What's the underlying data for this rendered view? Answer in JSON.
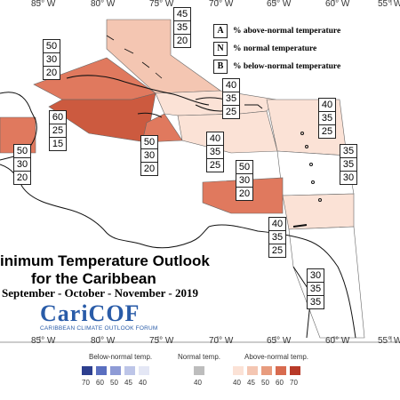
{
  "map": {
    "longitudes_top": [
      "85° W",
      "80° W",
      "75° W",
      "70° W",
      "65° W",
      "60° W",
      "55° W"
    ],
    "longitudes_bottom": [
      "85° W",
      "80° W",
      "75° W",
      "70° W",
      "65° W",
      "60° W",
      "55° W"
    ],
    "regions": [
      {
        "id": "bahamas",
        "probs": [
          "45",
          "35",
          "20"
        ],
        "category": "above-40",
        "color": "#f4c6b2"
      },
      {
        "id": "cuba-west",
        "probs": [
          "50",
          "30",
          "20"
        ],
        "category": "above-50",
        "color": "#e0795e"
      },
      {
        "id": "cayman",
        "probs": [
          "60",
          "25",
          "15"
        ],
        "category": "above-60",
        "color": "#cc5a3f"
      },
      {
        "id": "belize",
        "probs": [
          "50",
          "30",
          "20"
        ],
        "category": "above-50",
        "color": "#e0795e"
      },
      {
        "id": "jamaica-south",
        "probs": [
          "50",
          "30",
          "20"
        ],
        "category": "above-50",
        "color": "#e0795e"
      },
      {
        "id": "hispaniola-north",
        "probs": [
          "40",
          "35",
          "25"
        ],
        "category": "above-40",
        "color": "#fbe2d6"
      },
      {
        "id": "hispaniola-south",
        "probs": [
          "40",
          "35",
          "25"
        ],
        "category": "above-40",
        "color": "#fbe2d6"
      },
      {
        "id": "leeward",
        "probs": [
          "40",
          "35",
          "25"
        ],
        "category": "above-40",
        "color": "#fbe2d6"
      },
      {
        "id": "windward",
        "probs": [
          "35",
          "35",
          "30"
        ],
        "category": "normal",
        "color": "#ffffff"
      },
      {
        "id": "puerto-rico",
        "probs": [
          "50",
          "30",
          "20"
        ],
        "category": "above-50",
        "color": "#e0795e"
      },
      {
        "id": "abc-islands",
        "probs": [
          "40",
          "35",
          "25"
        ],
        "category": "above-40",
        "color": "#fbe2d6"
      },
      {
        "id": "guianas",
        "probs": [
          "30",
          "35",
          "35"
        ],
        "category": "normal",
        "color": "#ffffff"
      }
    ]
  },
  "legend": {
    "items": [
      {
        "key": "A",
        "text": "% above-normal temperature"
      },
      {
        "key": "N",
        "text": "% normal temperature"
      },
      {
        "key": "B",
        "text": "% below-normal temperature"
      }
    ]
  },
  "title": {
    "line1": "inimum Temperature Outlook",
    "line2": "for the Caribbean",
    "season": "September - October - November - 2019"
  },
  "logo": {
    "name": "CariCOF",
    "subtitle": "CARIBBEAN CLIMATE OUTLOOK FORUM"
  },
  "scale": {
    "below_label": "Below-normal temp.",
    "normal_label": "Normal temp.",
    "above_label": "Above-normal temp.",
    "below_colors": [
      "#2d3f8f",
      "#5a6fc0",
      "#8e9bd6",
      "#bdc5e8",
      "#e4e7f5"
    ],
    "normal_color": "#bdbdbd",
    "above_colors": [
      "#fbe2d6",
      "#f4c6b2",
      "#e89c7e",
      "#d86b4f",
      "#b83a28"
    ],
    "below_ticks": [
      "70",
      "60",
      "50",
      "45",
      "40"
    ],
    "normal_tick": "40",
    "above_ticks": [
      "40",
      "45",
      "50",
      "60",
      "70"
    ]
  }
}
